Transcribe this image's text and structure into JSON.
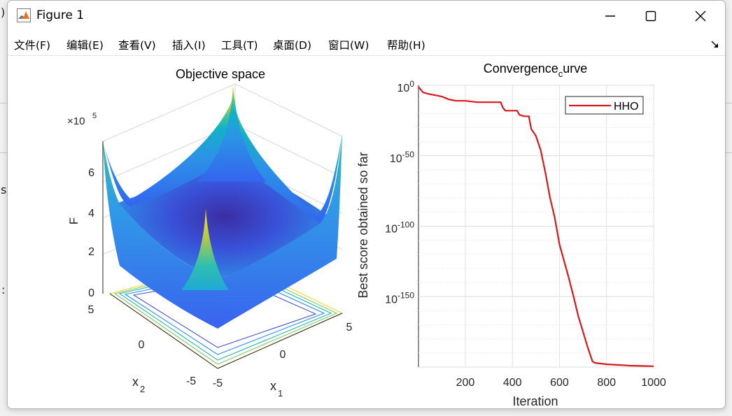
{
  "window": {
    "title": "Figure 1"
  },
  "menu": [
    {
      "label": "文件(F)"
    },
    {
      "label": "编辑(E)"
    },
    {
      "label": "查看(V)"
    },
    {
      "label": "插入(I)"
    },
    {
      "label": "工具(T)"
    },
    {
      "label": "桌面(D)"
    },
    {
      "label": "窗口(W)"
    },
    {
      "label": "帮助(H)"
    }
  ],
  "backdrop": {
    "paren": ")",
    "s": "s",
    "colon": ":"
  },
  "left_plot": {
    "title": "Objective space",
    "zlabel": "F",
    "xlabel_base": "x",
    "xlabel_sub": "1",
    "ylabel_base": "x",
    "ylabel_sub": "2",
    "exp_base": "×10",
    "exp_power": "5",
    "z_ticks": [
      "0",
      "2",
      "4",
      "6"
    ],
    "x1_ticks": [
      "-5",
      "0",
      "5"
    ],
    "x2_ticks": [
      "-5",
      "0",
      "5"
    ],
    "colormap": "parula"
  },
  "chart_data": {
    "type": "line",
    "title_main": "Convergence",
    "title_sub": "c",
    "title_tail": "urve",
    "xlabel": "Iteration",
    "ylabel": "Best score obtained so far",
    "xlim": [
      1,
      1000
    ],
    "ylim_log10": [
      -200,
      0
    ],
    "y_scale": "log",
    "x_ticks": [
      "200",
      "400",
      "600",
      "800",
      "1000"
    ],
    "y_tick_base": "10",
    "y_tick_exponents": [
      "0",
      "-50",
      "-100",
      "-150"
    ],
    "grid": true,
    "legend_position": "top-right",
    "series": [
      {
        "name": "HHO",
        "color": "#d7191c",
        "x": [
          1,
          10,
          20,
          40,
          70,
          100,
          130,
          160,
          200,
          250,
          300,
          350,
          360,
          370,
          420,
          430,
          450,
          470,
          480,
          500,
          520,
          540,
          560,
          580,
          600,
          620,
          640,
          660,
          680,
          700,
          720,
          740,
          750,
          800,
          850,
          900,
          950,
          1000
        ],
        "y_log10": [
          -1,
          -3,
          -5,
          -6,
          -7,
          -8,
          -10,
          -11,
          -11,
          -12,
          -12,
          -12,
          -16,
          -18,
          -18,
          -21,
          -22,
          -22,
          -31,
          -36,
          -46,
          -62,
          -80,
          -94,
          -113,
          -125,
          -137,
          -150,
          -164,
          -175,
          -186,
          -196,
          -197,
          -198,
          -198.5,
          -199,
          -199.2,
          -199.4
        ]
      }
    ]
  }
}
